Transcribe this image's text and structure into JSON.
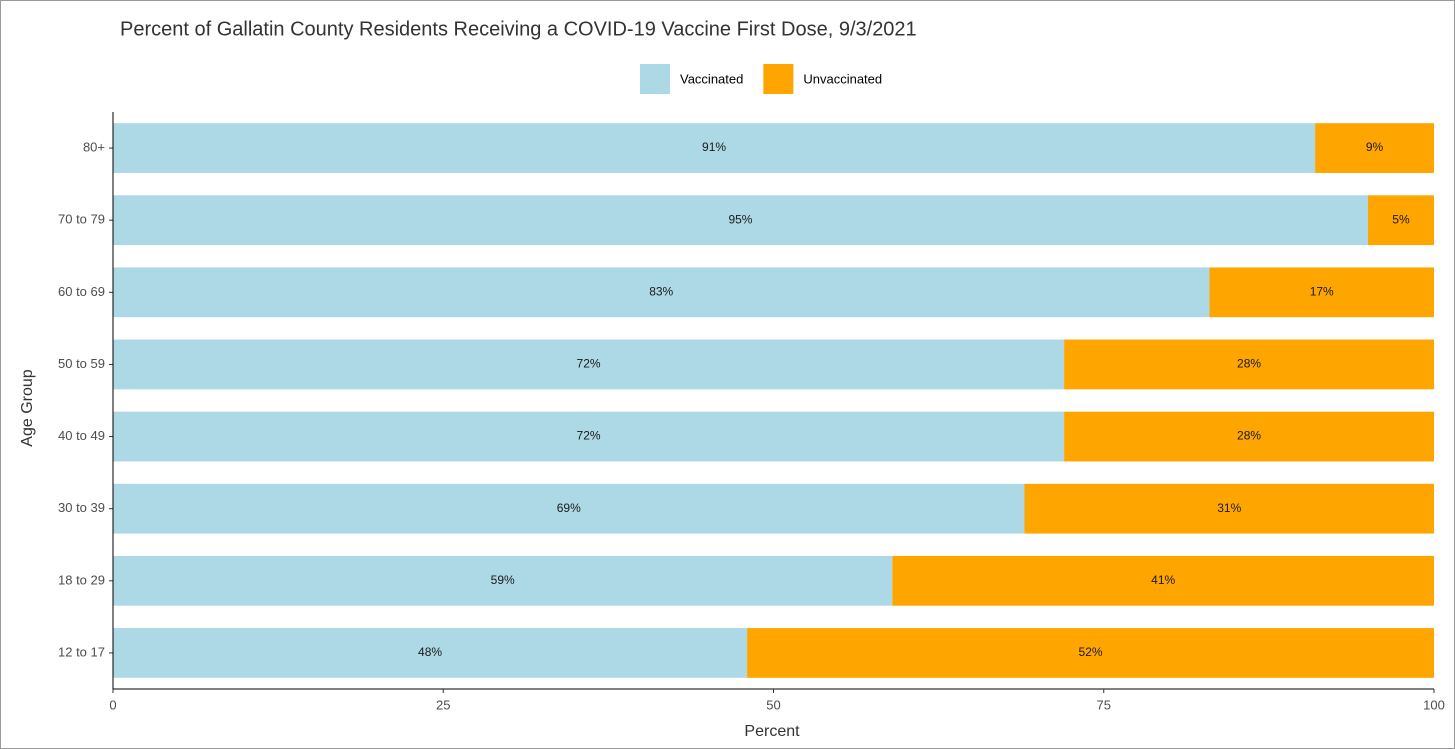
{
  "chart_data": {
    "type": "stacked-barh",
    "title": "Percent of Gallatin County Residents Receiving a COVID-19 Vaccine First Dose, 9/3/2021",
    "xlabel": "Percent",
    "ylabel": "Age Group",
    "categories": [
      "80+",
      "70 to 79",
      "60 to 69",
      "50 to 59",
      "40 to 49",
      "30 to 39",
      "18 to 29",
      "12 to 17"
    ],
    "series": [
      {
        "name": "Vaccinated",
        "color": "#add8e6",
        "values": [
          91,
          95,
          83,
          72,
          72,
          69,
          59,
          48
        ],
        "value_labels": [
          "91%",
          "95%",
          "83%",
          "72%",
          "72%",
          "69%",
          "59%",
          "48%"
        ]
      },
      {
        "name": "Unvaccinated",
        "color": "#ffa500",
        "values": [
          9,
          5,
          17,
          28,
          28,
          31,
          41,
          52
        ],
        "value_labels": [
          "9%",
          "5%",
          "17%",
          "28%",
          "28%",
          "31%",
          "41%",
          "52%"
        ]
      }
    ],
    "xlim": [
      0,
      100
    ],
    "xticks": [
      0,
      25,
      50,
      75,
      100
    ],
    "legend": "top"
  }
}
